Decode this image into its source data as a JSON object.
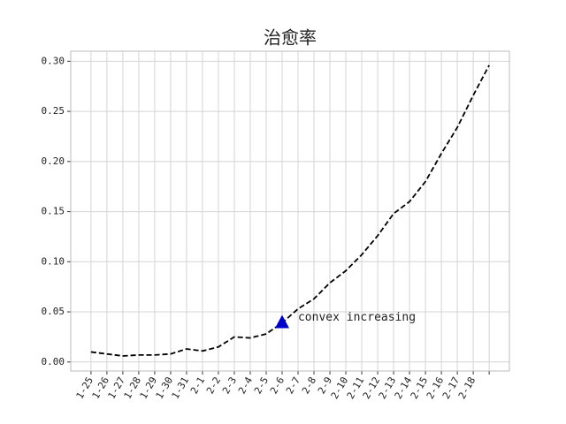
{
  "chart_data": {
    "type": "line",
    "title": "治愈率",
    "categories": [
      "1-25",
      "1-26",
      "1-27",
      "1-28",
      "1-29",
      "1-30",
      "1-31",
      "2-1",
      "2-2",
      "2-3",
      "2-4",
      "2-5",
      "2-6",
      "2-7",
      "2-8",
      "2-9",
      "2-10",
      "2-11",
      "2-12",
      "2-13",
      "2-14",
      "2-15",
      "2-16",
      "2-17",
      "2-18",
      null
    ],
    "series": [
      {
        "name": "治愈率",
        "color": "#000000",
        "values": [
          0.01,
          0.008,
          0.006,
          0.007,
          0.007,
          0.008,
          0.013,
          0.011,
          0.015,
          0.025,
          0.024,
          0.028,
          0.039,
          0.053,
          0.063,
          0.079,
          0.091,
          0.107,
          0.126,
          0.148,
          0.16,
          0.18,
          0.208,
          0.234,
          0.266,
          0.296
        ]
      }
    ],
    "annotation": {
      "text": "convex increasing",
      "category": "2-6",
      "value": 0.039,
      "color": "#0000cc"
    },
    "ylim": [
      -0.009,
      0.31
    ],
    "yticks": [
      {
        "value": 0,
        "label": "0.00"
      },
      {
        "value": 0.05,
        "label": "0.05"
      },
      {
        "value": 0.1,
        "label": "0.10"
      },
      {
        "value": 0.15,
        "label": "0.15"
      },
      {
        "value": 0.2,
        "label": "0.20"
      },
      {
        "value": 0.25,
        "label": "0.25"
      },
      {
        "value": 0.3,
        "label": "0.30"
      }
    ],
    "grid": true
  }
}
